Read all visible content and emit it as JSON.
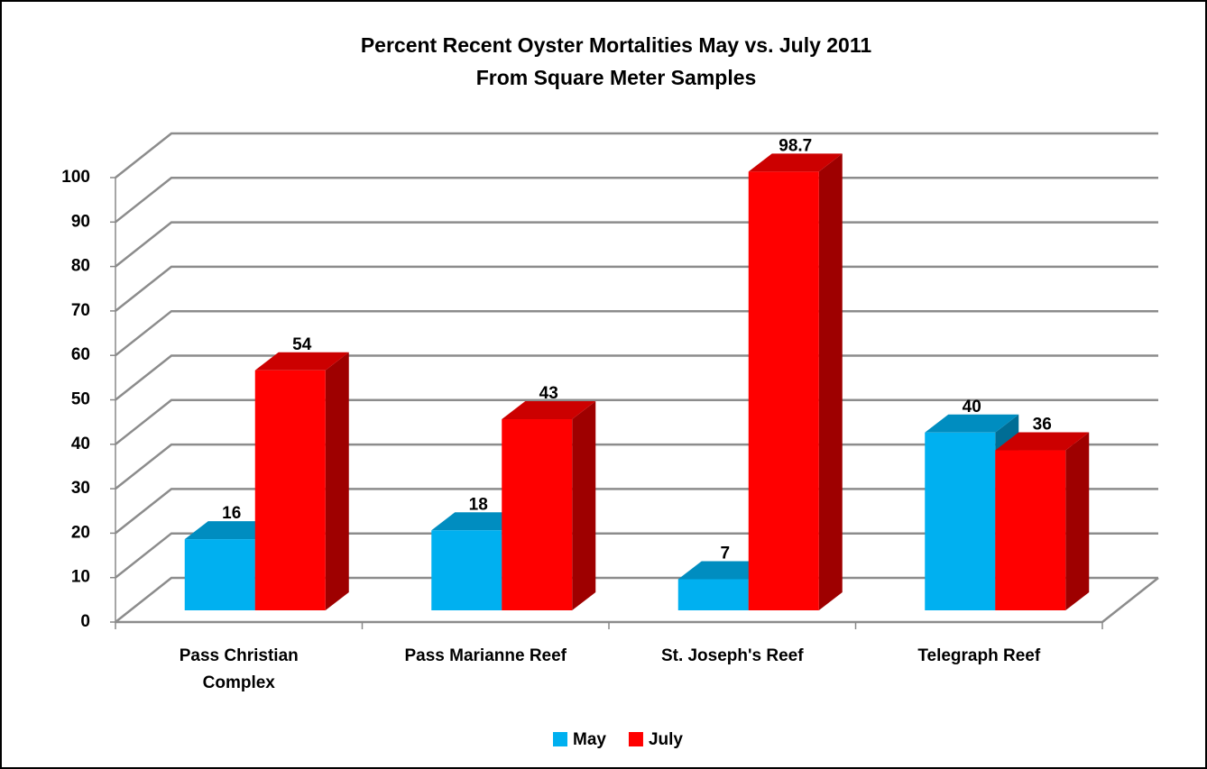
{
  "chart_data": {
    "type": "bar3d",
    "title": "Percent Recent Oyster Mortalities May vs. July 2011",
    "subtitle": "From Square Meter Samples",
    "categories": [
      "Pass Christian Complex",
      "Pass Marianne Reef",
      "St. Joseph's Reef",
      "Telegraph Reef"
    ],
    "series": [
      {
        "name": "May",
        "color": "#00b0f0",
        "values": [
          16,
          18,
          7,
          40
        ]
      },
      {
        "name": "July",
        "color": "#ff0000",
        "values": [
          54,
          43,
          98.7,
          36
        ],
        "value_labels": [
          "54",
          "43",
          "98.7",
          "36"
        ]
      }
    ],
    "ylim": [
      0,
      100
    ],
    "yticks": [
      0,
      10,
      20,
      30,
      40,
      50,
      60,
      70,
      80,
      90,
      100
    ],
    "grid": true,
    "legend": "bottom"
  }
}
